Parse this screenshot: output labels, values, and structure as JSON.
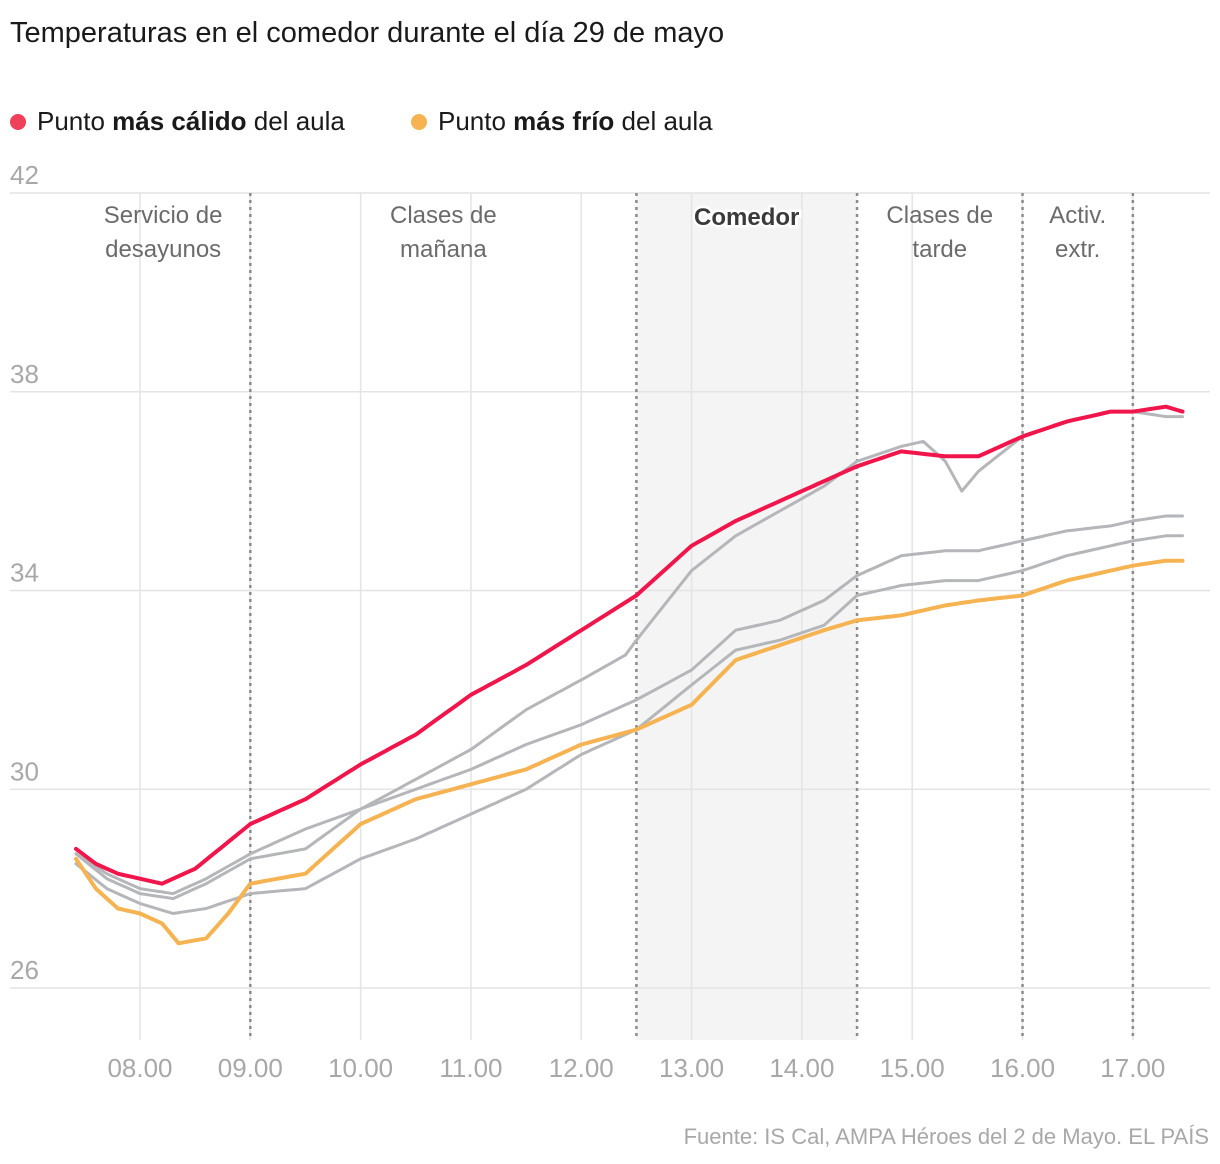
{
  "header": {
    "title": "Temperaturas en el comedor durante el día 29 de mayo"
  },
  "legend": [
    {
      "prefix": "Punto ",
      "bold": "más cálido",
      "suffix": " del aula",
      "color": "#f0405a"
    },
    {
      "prefix": "Punto ",
      "bold": "más frío",
      "suffix": " del aula",
      "color": "#f5b352"
    }
  ],
  "periods": [
    {
      "label1": "Servicio de",
      "label2": "desayunos",
      "from": 7.42,
      "to": 9.0,
      "highlight": false
    },
    {
      "label1": "Clases de",
      "label2": "mañana",
      "from": 9.0,
      "to": 12.5,
      "highlight": false
    },
    {
      "label1": "Comedor",
      "label2": "",
      "from": 12.5,
      "to": 14.5,
      "highlight": true
    },
    {
      "label1": "Clases de",
      "label2": "tarde",
      "from": 14.5,
      "to": 16.0,
      "highlight": false
    },
    {
      "label1": "Activ.",
      "label2": "extr.",
      "from": 16.0,
      "to": 17.0,
      "highlight": false
    }
  ],
  "dividers": [
    9.0,
    12.5,
    14.5,
    16.0,
    17.0
  ],
  "footer": {
    "source": "Fuente: IS Cal, AMPA Héroes del 2 de Mayo. EL PAÍS"
  },
  "chart_data": {
    "type": "line",
    "xlim": [
      7.42,
      17.5
    ],
    "ylim": [
      26,
      42
    ],
    "yticks": [
      26,
      30,
      34,
      38,
      42
    ],
    "xticks": [
      8,
      9,
      10,
      11,
      12,
      13,
      14,
      15,
      16,
      17
    ],
    "xtick_labels": [
      "08.00",
      "09.00",
      "10.00",
      "11.00",
      "12.00",
      "13.00",
      "14.00",
      "15.00",
      "16.00",
      "17.00"
    ],
    "grid": true,
    "legend_position": "top-left",
    "series": [
      {
        "name": "Punto más cálido del aula",
        "color": "#f0154a",
        "x": [
          7.42,
          7.6,
          7.8,
          8.0,
          8.2,
          8.5,
          9.0,
          9.5,
          10.0,
          10.5,
          11.0,
          11.5,
          12.0,
          12.5,
          13.0,
          13.4,
          13.8,
          14.2,
          14.5,
          14.9,
          15.3,
          15.6,
          16.0,
          16.4,
          16.8,
          17.0,
          17.3,
          17.45
        ],
        "y": [
          28.8,
          28.5,
          28.3,
          28.2,
          28.1,
          28.4,
          29.3,
          29.8,
          30.5,
          31.1,
          31.9,
          32.5,
          33.2,
          33.9,
          34.9,
          35.4,
          35.8,
          36.2,
          36.5,
          36.8,
          36.7,
          36.7,
          37.1,
          37.4,
          37.6,
          37.6,
          37.7,
          37.6
        ]
      },
      {
        "name": "Punto más frío del aula",
        "color": "#f5b352",
        "x": [
          7.42,
          7.6,
          7.8,
          8.0,
          8.2,
          8.35,
          8.6,
          8.8,
          9.0,
          9.5,
          10.0,
          10.5,
          11.0,
          11.5,
          12.0,
          12.5,
          13.0,
          13.4,
          13.8,
          14.2,
          14.5,
          14.9,
          15.3,
          15.6,
          16.0,
          16.4,
          16.8,
          17.0,
          17.3,
          17.45
        ],
        "y": [
          28.6,
          28.0,
          27.6,
          27.5,
          27.3,
          26.9,
          27.0,
          27.5,
          28.1,
          28.3,
          29.3,
          29.8,
          30.1,
          30.4,
          30.9,
          31.2,
          31.7,
          32.6,
          32.9,
          33.2,
          33.4,
          33.5,
          33.7,
          33.8,
          33.9,
          34.2,
          34.4,
          34.5,
          34.6,
          34.6
        ]
      },
      {
        "name": "",
        "color": "#b4b6ba",
        "x": [
          7.42,
          7.7,
          8.0,
          8.3,
          8.6,
          9.0,
          9.5,
          10.0,
          10.5,
          11.0,
          11.5,
          12.0,
          12.4,
          12.5,
          13.0,
          13.4,
          13.8,
          14.2,
          14.5,
          14.9,
          15.1,
          15.3,
          15.45,
          15.6,
          16.0,
          16.4,
          16.8,
          17.0,
          17.3,
          17.45
        ],
        "y": [
          28.7,
          28.3,
          28.0,
          27.9,
          28.2,
          28.7,
          29.2,
          29.6,
          30.2,
          30.8,
          31.6,
          32.2,
          32.7,
          33.0,
          34.4,
          35.1,
          35.6,
          36.1,
          36.6,
          36.9,
          37.0,
          36.6,
          36.0,
          36.4,
          37.1,
          37.4,
          37.6,
          37.6,
          37.5,
          37.5
        ]
      },
      {
        "name": "",
        "color": "#b4b6ba",
        "x": [
          7.42,
          7.7,
          8.0,
          8.3,
          8.6,
          9.0,
          9.5,
          10.0,
          10.5,
          11.0,
          11.5,
          12.0,
          12.5,
          13.0,
          13.4,
          13.8,
          14.2,
          14.5,
          14.9,
          15.3,
          15.6,
          16.0,
          16.4,
          16.8,
          17.0,
          17.3,
          17.45
        ],
        "y": [
          28.7,
          28.2,
          27.9,
          27.8,
          28.1,
          28.6,
          28.8,
          29.6,
          30.0,
          30.4,
          30.9,
          31.3,
          31.8,
          32.4,
          33.2,
          33.4,
          33.8,
          34.3,
          34.7,
          34.8,
          34.8,
          35.0,
          35.2,
          35.3,
          35.4,
          35.5,
          35.5
        ]
      },
      {
        "name": "",
        "color": "#b4b6ba",
        "x": [
          7.42,
          7.7,
          8.0,
          8.3,
          8.6,
          9.0,
          9.5,
          10.0,
          10.5,
          11.0,
          11.5,
          12.0,
          12.5,
          13.0,
          13.4,
          13.8,
          14.2,
          14.5,
          14.9,
          15.3,
          15.6,
          16.0,
          16.4,
          16.8,
          17.0,
          17.3,
          17.45
        ],
        "y": [
          28.5,
          28.0,
          27.7,
          27.5,
          27.6,
          27.9,
          28.0,
          28.6,
          29.0,
          29.5,
          30.0,
          30.7,
          31.2,
          32.1,
          32.8,
          33.0,
          33.3,
          33.9,
          34.1,
          34.2,
          34.2,
          34.4,
          34.7,
          34.9,
          35.0,
          35.1,
          35.1
        ]
      }
    ]
  }
}
